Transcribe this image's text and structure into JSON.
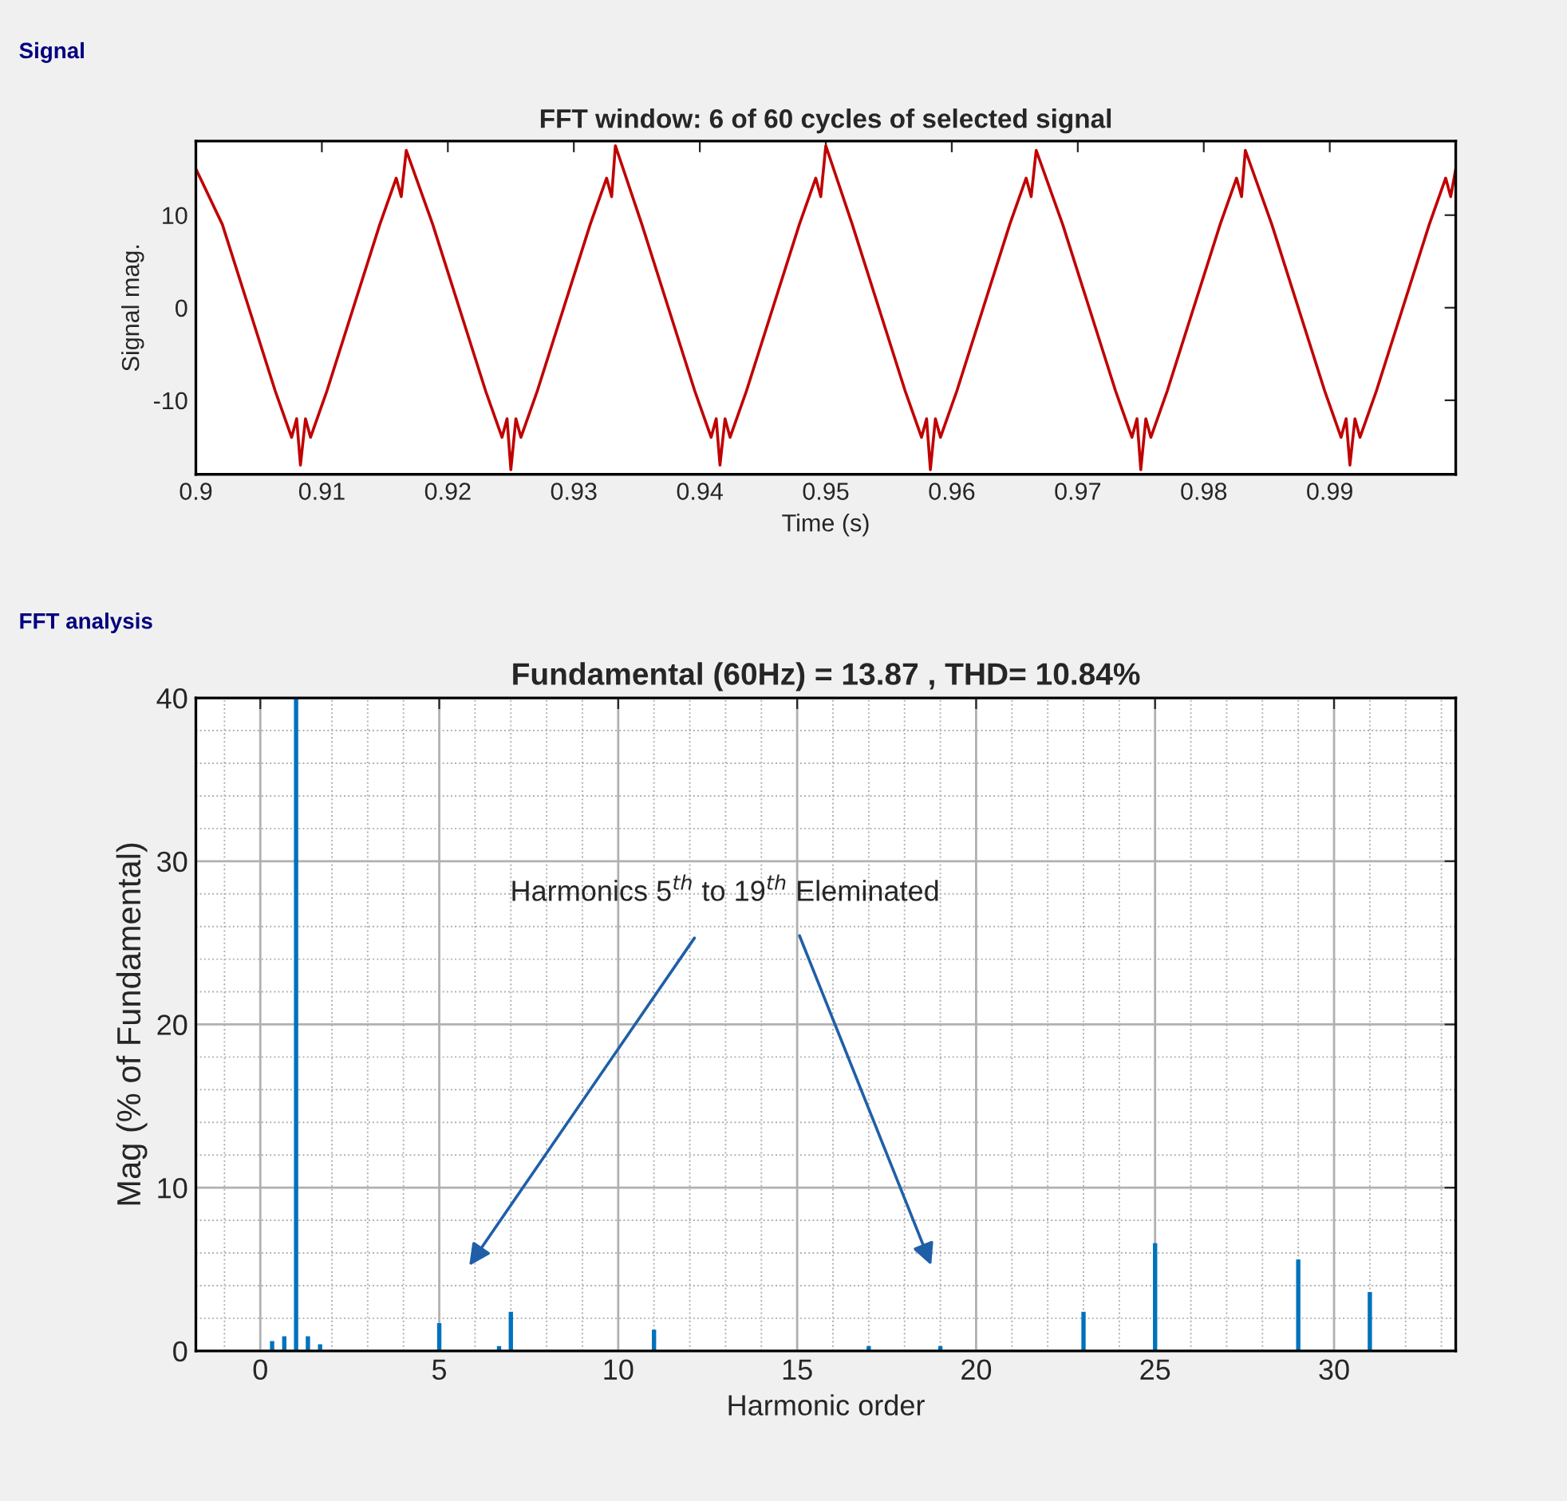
{
  "chart_data": [
    {
      "type": "line",
      "title": "FFT window: 6 of 60 cycles of selected signal",
      "xlabel": "Time (s)",
      "ylabel": "Signal mag.",
      "annotations": [
        "Signal"
      ],
      "x": [
        0.9,
        0.9021,
        0.9042,
        0.9063,
        0.9076,
        0.908,
        0.9083,
        0.9087,
        0.9091,
        0.9104,
        0.9125,
        0.9146,
        0.9159,
        0.9163,
        0.9167,
        0.9188,
        0.9209,
        0.923,
        0.9243,
        0.9247,
        0.925,
        0.9254,
        0.9258,
        0.9271,
        0.9292,
        0.9313,
        0.9326,
        0.933,
        0.9333,
        0.9354,
        0.9375,
        0.9396,
        0.9409,
        0.9413,
        0.9416,
        0.942,
        0.9424,
        0.9437,
        0.9458,
        0.9479,
        0.9492,
        0.9496,
        0.95,
        0.9521,
        0.9542,
        0.9563,
        0.9576,
        0.958,
        0.9583,
        0.9587,
        0.9591,
        0.9604,
        0.9625,
        0.9646,
        0.9659,
        0.9663,
        0.9667,
        0.9688,
        0.9709,
        0.973,
        0.9743,
        0.9747,
        0.975,
        0.9754,
        0.9758,
        0.9771,
        0.9792,
        0.9813,
        0.9826,
        0.983,
        0.9833,
        0.9854,
        0.9875,
        0.9896,
        0.9909,
        0.9913,
        0.9916,
        0.992,
        0.9924,
        0.9937,
        0.9958,
        0.9979,
        0.9992,
        0.9996,
        1.0
      ],
      "series": [
        {
          "color": "#c00000",
          "values": [
            15,
            9,
            0,
            -9,
            -14,
            -12,
            -17,
            -12,
            -14,
            -9,
            0,
            9,
            14,
            12,
            17,
            9,
            0,
            -9,
            -14,
            -12,
            -17.5,
            -12,
            -14,
            -9,
            0,
            9,
            14,
            12,
            17.5,
            9,
            0,
            -9,
            -14,
            -12,
            -17,
            -12,
            -14,
            -9,
            0,
            9,
            14,
            12,
            17.5,
            9,
            0,
            -9,
            -14,
            -12,
            -17.5,
            -12,
            -14,
            -9,
            0,
            9,
            14,
            12,
            17,
            9,
            0,
            -9,
            -14,
            -12,
            -17.5,
            -12,
            -14,
            -9,
            0,
            9,
            14,
            12,
            17,
            9,
            0,
            -9,
            -14,
            -12,
            -17,
            -12,
            -14,
            -9,
            0,
            9,
            14,
            12,
            15
          ]
        }
      ],
      "xlim": [
        0.9,
        1.0
      ],
      "ylim": [
        -18,
        18
      ],
      "xticks": [
        0.9,
        0.91,
        0.92,
        0.93,
        0.94,
        0.95,
        0.96,
        0.97,
        0.98,
        0.99
      ],
      "yticks": [
        -10,
        0,
        10
      ],
      "grid": false
    },
    {
      "type": "bar",
      "title": "Fundamental (60Hz) = 13.87 , THD= 10.84%",
      "xlabel": "Harmonic order",
      "ylabel": "Mag (% of Fundamental)",
      "annotations": [
        "FFT analysis",
        "Harmonics 5$^{th}$ to 19$^{th}$ Eleminated"
      ],
      "x": [
        0.33,
        0.67,
        1,
        1.33,
        1.67,
        5,
        6.67,
        7,
        11,
        17,
        19,
        23,
        25,
        29,
        31
      ],
      "series": [
        {
          "color": "#0072bd",
          "values": [
            0.6,
            0.9,
            40,
            0.9,
            0.4,
            1.7,
            0.3,
            2.4,
            1.3,
            0.3,
            0.3,
            2.4,
            6.6,
            5.6,
            3.6
          ]
        }
      ],
      "xlim": [
        -1.8,
        33.4
      ],
      "ylim": [
        0,
        40
      ],
      "xticks": [
        0,
        5,
        10,
        15,
        20,
        25,
        30
      ],
      "yticks": [
        0,
        10,
        20,
        30,
        40
      ],
      "grid": true
    }
  ]
}
